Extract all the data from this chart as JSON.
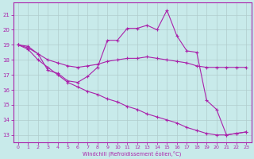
{
  "background_color": "#c8eaea",
  "grid_color": "#b0cccc",
  "line_color": "#aa22aa",
  "xlabel": "Windchill (Refroidissement éolien,°C)",
  "ylim": [
    12.5,
    21.8
  ],
  "xlim": [
    -0.5,
    23.5
  ],
  "yticks": [
    13,
    14,
    15,
    16,
    17,
    18,
    19,
    20,
    21
  ],
  "xticks": [
    0,
    1,
    2,
    3,
    4,
    5,
    6,
    7,
    8,
    9,
    10,
    11,
    12,
    13,
    14,
    15,
    16,
    17,
    18,
    19,
    20,
    21,
    22,
    23
  ],
  "line1_x": [
    0,
    1,
    2,
    3,
    4,
    5,
    6,
    7,
    8,
    9,
    10,
    11,
    12,
    13,
    14,
    15,
    16,
    17,
    18,
    19,
    20,
    21,
    22,
    23
  ],
  "line1_y": [
    19.0,
    18.8,
    18.4,
    17.3,
    17.1,
    16.6,
    16.5,
    16.9,
    17.5,
    19.3,
    19.3,
    20.1,
    20.1,
    20.3,
    20.0,
    21.3,
    19.6,
    18.6,
    18.5,
    15.3,
    14.7,
    13.0,
    13.1,
    13.2
  ],
  "line2_x": [
    0,
    1,
    2,
    3,
    4,
    5,
    6,
    7,
    8,
    9,
    10,
    11,
    12,
    13,
    14,
    15,
    16,
    17,
    18,
    19,
    20,
    21,
    22,
    23
  ],
  "line2_y": [
    19.0,
    18.9,
    18.4,
    18.0,
    17.8,
    17.6,
    17.5,
    17.6,
    17.7,
    17.9,
    18.0,
    18.1,
    18.1,
    18.2,
    18.1,
    18.0,
    17.9,
    17.8,
    17.6,
    17.5,
    17.5,
    17.5,
    17.5,
    17.5
  ],
  "line3_x": [
    0,
    1,
    2,
    3,
    4,
    5,
    6,
    7,
    8,
    9,
    10,
    11,
    12,
    13,
    14,
    15,
    16,
    17,
    18,
    19,
    20,
    21,
    22,
    23
  ],
  "line3_y": [
    19.0,
    18.7,
    18.0,
    17.5,
    17.0,
    16.5,
    16.2,
    15.9,
    15.7,
    15.4,
    15.2,
    14.9,
    14.7,
    14.4,
    14.2,
    14.0,
    13.8,
    13.5,
    13.3,
    13.1,
    13.0,
    13.0,
    13.1,
    13.2
  ]
}
